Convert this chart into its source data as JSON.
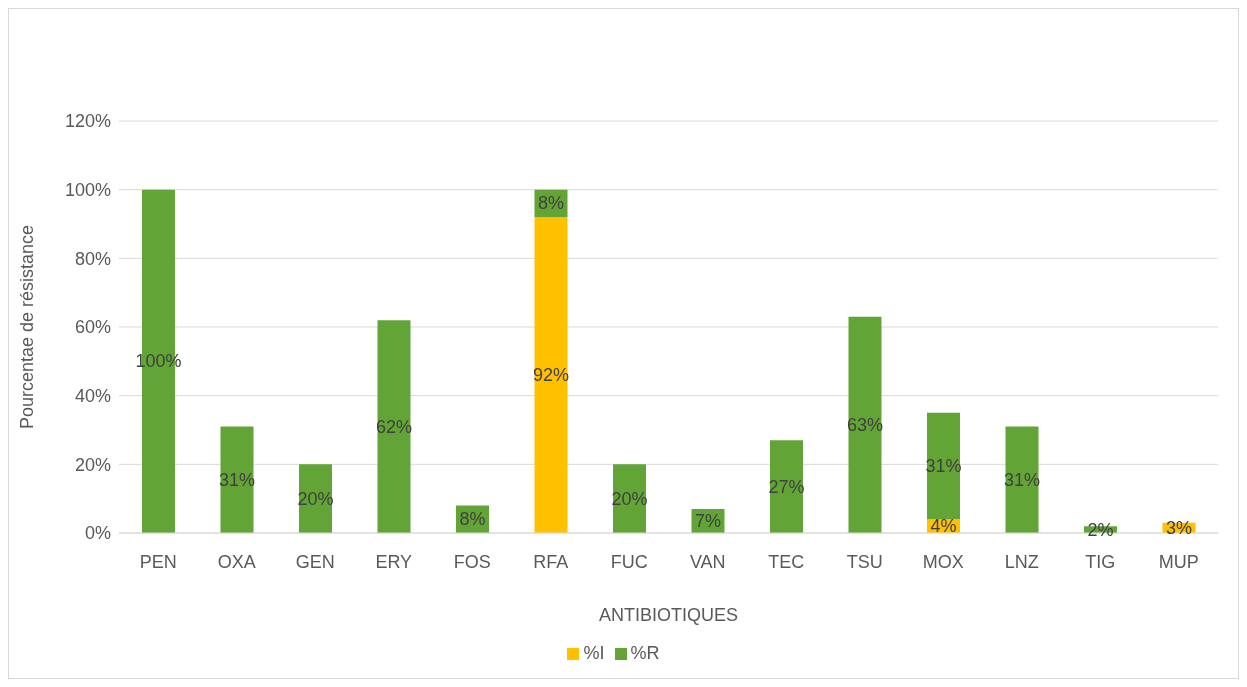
{
  "chart_data": {
    "type": "bar",
    "stacked": true,
    "xlabel": "ANTIBIOTIQUES",
    "ylabel": "Pourcentae de résistance",
    "categories": [
      "PEN",
      "OXA",
      "GEN",
      "ERY",
      "FOS",
      "RFA",
      "FUC",
      "VAN",
      "TEC",
      "TSU",
      "MOX",
      "LNZ",
      "TIG",
      "MUP"
    ],
    "series": [
      {
        "name": "%I",
        "color": "#ffc000",
        "values": [
          null,
          null,
          null,
          null,
          null,
          92,
          null,
          null,
          null,
          null,
          4,
          null,
          null,
          3
        ],
        "value_labels": [
          null,
          null,
          null,
          null,
          null,
          "92%",
          null,
          null,
          null,
          null,
          "4%",
          null,
          null,
          "3%"
        ]
      },
      {
        "name": "%R",
        "color": "#62a436",
        "values": [
          100,
          31,
          20,
          62,
          8,
          8,
          20,
          7,
          27,
          63,
          31,
          31,
          2,
          null
        ],
        "value_labels": [
          "100%",
          "31%",
          "20%",
          "62%",
          "8%",
          "8%",
          "20%",
          "7%",
          "27%",
          "63%",
          "31%",
          "31%",
          "2%",
          null
        ]
      }
    ],
    "ylim": [
      0,
      120
    ],
    "yticks": [
      {
        "value": 0,
        "label": "0%"
      },
      {
        "value": 20,
        "label": "20%"
      },
      {
        "value": 40,
        "label": "40%"
      },
      {
        "value": 60,
        "label": "60%"
      },
      {
        "value": 80,
        "label": "80%"
      },
      {
        "value": 100,
        "label": "100%"
      },
      {
        "value": 120,
        "label": "120%"
      }
    ],
    "grid": "y",
    "legend": "bottom"
  }
}
